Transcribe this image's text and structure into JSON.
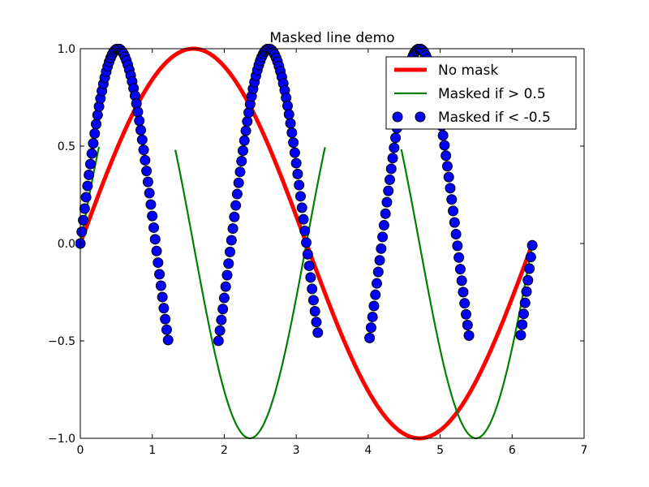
{
  "chart_data": {
    "type": "line",
    "title": "Masked line demo",
    "xlabel": "",
    "ylabel": "",
    "xlim": [
      0,
      7
    ],
    "ylim": [
      -1.0,
      1.0
    ],
    "x_ticks": [
      0,
      1,
      2,
      3,
      4,
      5,
      6,
      7
    ],
    "x_tick_labels": [
      "0",
      "1",
      "2",
      "3",
      "4",
      "5",
      "6",
      "7"
    ],
    "y_ticks": [
      -1.0,
      -0.5,
      0.0,
      0.5,
      1.0
    ],
    "y_tick_labels": [
      "−1.0",
      "−0.5",
      "0.0",
      "0.5",
      "1.0"
    ],
    "grid": false,
    "legend_position": "top-right",
    "x_range": [
      0,
      6.28
    ],
    "x_step": 0.02,
    "series": [
      {
        "name": "No mask",
        "function": "sin(x)",
        "mask": "none",
        "color": "#ff0000",
        "style": "line"
      },
      {
        "name": "Masked if > 0.5",
        "function": "sin(2x)",
        "mask": "y > 0.5",
        "color": "#008000",
        "style": "line"
      },
      {
        "name": "Masked if < -0.5",
        "function": "sin(3x)",
        "mask": "y < -0.5",
        "color": "#0000ff",
        "style": "markers"
      }
    ]
  }
}
